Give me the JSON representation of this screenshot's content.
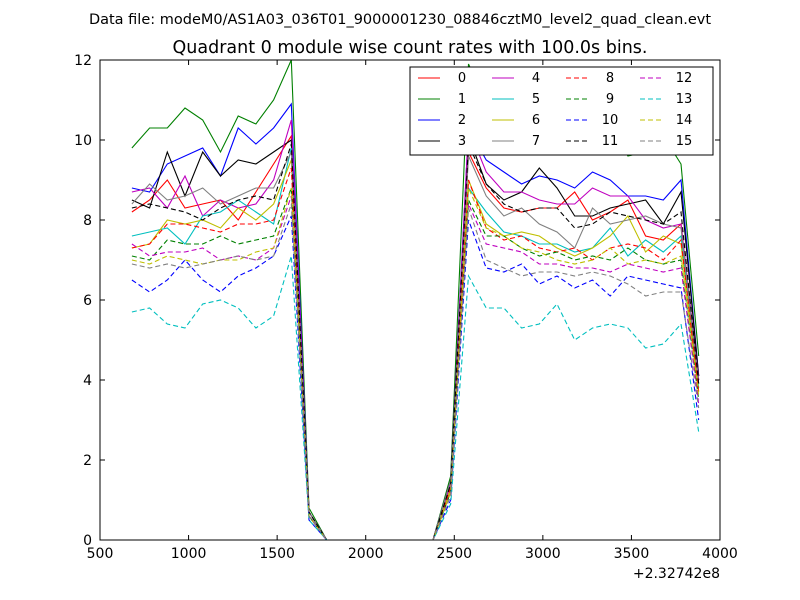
{
  "chart_data": {
    "type": "line",
    "suptitle": "Data file: modeM0/AS1A03_036T01_9000001230_08846cztM0_level2_quad_clean.evt",
    "title": "Quadrant 0 module wise count rates with 100.0s bins.",
    "xlabel": "",
    "ylabel": "",
    "x_offset_label": "+2.32742e8",
    "xlim": [
      500,
      4000
    ],
    "ylim": [
      0,
      12
    ],
    "x_ticks": [
      "500",
      "1000",
      "1500",
      "2000",
      "2500",
      "3000",
      "3500",
      "4000"
    ],
    "y_ticks": [
      "0",
      "2",
      "4",
      "6",
      "8",
      "10",
      "12"
    ],
    "grid": false,
    "legend_position": "top-right",
    "x": [
      680,
      780,
      880,
      980,
      1080,
      1180,
      1280,
      1380,
      1480,
      1580,
      1680,
      1780,
      1880,
      1980,
      2080,
      2180,
      2280,
      2380,
      2480,
      2580,
      2680,
      2780,
      2880,
      2980,
      3080,
      3180,
      3280,
      3380,
      3480,
      3580,
      3680,
      3780,
      3880
    ],
    "series": [
      {
        "name": "0",
        "color": "#ff0000",
        "dash": "solid",
        "values": [
          8.2,
          8.5,
          9.0,
          8.3,
          8.4,
          8.5,
          8.0,
          8.7,
          9.4,
          10.1,
          0.7,
          0.0,
          0.0,
          0.0,
          0.0,
          0.0,
          0.0,
          0.0,
          1.4,
          9.7,
          8.8,
          8.3,
          8.2,
          8.3,
          8.3,
          8.7,
          8.0,
          8.2,
          8.5,
          7.6,
          7.5,
          7.9,
          4.0
        ]
      },
      {
        "name": "1",
        "color": "#008000",
        "dash": "solid",
        "values": [
          9.8,
          10.3,
          10.3,
          10.8,
          10.5,
          9.7,
          10.6,
          10.4,
          11.0,
          12.0,
          0.8,
          0.0,
          0.0,
          0.0,
          0.0,
          0.0,
          0.0,
          0.0,
          1.6,
          11.9,
          10.9,
          10.4,
          10.0,
          9.8,
          9.9,
          9.9,
          10.2,
          10.3,
          9.6,
          9.7,
          10.1,
          9.4,
          4.6
        ]
      },
      {
        "name": "2",
        "color": "#0000ff",
        "dash": "solid",
        "values": [
          8.8,
          8.7,
          9.4,
          9.6,
          9.8,
          9.1,
          10.3,
          9.9,
          10.3,
          10.9,
          0.7,
          0.0,
          0.0,
          0.0,
          0.0,
          0.0,
          0.0,
          0.0,
          1.5,
          10.3,
          9.5,
          9.2,
          8.9,
          9.1,
          9.0,
          8.8,
          9.2,
          9.0,
          8.6,
          8.6,
          8.5,
          9.0,
          4.1
        ]
      },
      {
        "name": "3",
        "color": "#000000",
        "dash": "solid",
        "values": [
          8.5,
          8.3,
          9.7,
          8.6,
          9.7,
          9.1,
          9.5,
          9.4,
          9.7,
          10.0,
          0.7,
          0.0,
          0.0,
          0.0,
          0.0,
          0.0,
          0.0,
          0.0,
          1.5,
          10.1,
          8.9,
          8.5,
          8.7,
          9.3,
          8.8,
          8.1,
          8.1,
          8.3,
          8.4,
          8.5,
          7.9,
          8.7,
          4.1
        ]
      },
      {
        "name": "4",
        "color": "#bf00bf",
        "dash": "solid",
        "values": [
          8.7,
          8.8,
          8.3,
          9.1,
          8.1,
          8.5,
          8.3,
          8.4,
          9.0,
          10.5,
          0.7,
          0.0,
          0.0,
          0.0,
          0.0,
          0.0,
          0.0,
          0.0,
          1.4,
          10.3,
          9.2,
          8.7,
          8.7,
          8.5,
          8.4,
          8.4,
          8.8,
          8.6,
          8.6,
          8.0,
          7.8,
          7.9,
          4.0
        ]
      },
      {
        "name": "5",
        "color": "#00bfbf",
        "dash": "solid",
        "values": [
          7.6,
          7.7,
          7.8,
          7.4,
          8.1,
          8.2,
          8.5,
          8.2,
          7.9,
          9.8,
          0.6,
          0.0,
          0.0,
          0.0,
          0.0,
          0.0,
          0.0,
          0.0,
          1.2,
          8.8,
          8.2,
          7.7,
          7.6,
          7.4,
          7.4,
          7.2,
          7.3,
          7.8,
          7.1,
          7.5,
          7.2,
          7.6,
          3.8
        ]
      },
      {
        "name": "6",
        "color": "#bfbf00",
        "dash": "solid",
        "values": [
          7.3,
          7.4,
          8.0,
          7.9,
          8.0,
          7.8,
          8.3,
          8.0,
          8.4,
          9.5,
          0.6,
          0.0,
          0.0,
          0.0,
          0.0,
          0.0,
          0.0,
          0.0,
          1.3,
          9.0,
          7.9,
          7.6,
          7.7,
          7.6,
          7.3,
          7.1,
          7.3,
          7.6,
          8.1,
          7.2,
          7.6,
          7.4,
          3.7
        ]
      },
      {
        "name": "7",
        "color": "#808080",
        "dash": "solid",
        "values": [
          8.4,
          8.9,
          8.5,
          8.6,
          8.8,
          8.4,
          8.6,
          8.8,
          8.8,
          9.7,
          0.7,
          0.0,
          0.0,
          0.0,
          0.0,
          0.0,
          0.0,
          0.0,
          1.5,
          9.6,
          8.6,
          8.1,
          8.3,
          7.9,
          7.7,
          7.3,
          8.3,
          7.9,
          8.0,
          8.1,
          7.9,
          7.8,
          3.9
        ]
      },
      {
        "name": "8",
        "color": "#ff0000",
        "dash": "dashed",
        "values": [
          7.3,
          7.4,
          7.9,
          7.9,
          7.8,
          7.7,
          7.9,
          7.9,
          8.0,
          9.3,
          0.6,
          0.0,
          0.0,
          0.0,
          0.0,
          0.0,
          0.0,
          0.0,
          1.3,
          9.0,
          7.8,
          7.5,
          7.6,
          7.3,
          7.2,
          7.3,
          7.0,
          7.3,
          7.4,
          7.3,
          7.0,
          7.5,
          3.7
        ]
      },
      {
        "name": "9",
        "color": "#008000",
        "dash": "dashed",
        "values": [
          7.1,
          7.0,
          7.5,
          7.4,
          7.4,
          7.6,
          7.4,
          7.5,
          7.6,
          8.8,
          0.6,
          0.0,
          0.0,
          0.0,
          0.0,
          0.0,
          0.0,
          0.0,
          1.2,
          8.5,
          7.6,
          7.6,
          7.3,
          7.1,
          7.2,
          7.0,
          7.1,
          7.0,
          7.3,
          7.0,
          6.9,
          7.0,
          3.5
        ]
      },
      {
        "name": "10",
        "color": "#0000ff",
        "dash": "dashed",
        "values": [
          6.5,
          6.2,
          6.5,
          7.0,
          6.5,
          6.2,
          6.6,
          6.8,
          7.1,
          8.1,
          0.5,
          0.0,
          0.0,
          0.0,
          0.0,
          0.0,
          0.0,
          0.0,
          1.0,
          8.0,
          6.8,
          6.7,
          6.9,
          6.4,
          6.6,
          6.3,
          6.5,
          6.1,
          6.6,
          6.5,
          6.4,
          6.3,
          3.0
        ]
      },
      {
        "name": "11",
        "color": "#000000",
        "dash": "dashed",
        "values": [
          8.3,
          8.4,
          8.3,
          8.2,
          8.0,
          8.3,
          8.5,
          8.6,
          8.5,
          9.9,
          0.7,
          0.0,
          0.0,
          0.0,
          0.0,
          0.0,
          0.0,
          0.0,
          1.4,
          9.9,
          8.9,
          8.4,
          8.2,
          8.3,
          8.3,
          7.8,
          7.9,
          8.2,
          8.1,
          8.0,
          7.9,
          8.2,
          3.9
        ]
      },
      {
        "name": "12",
        "color": "#bf00bf",
        "dash": "dashed",
        "values": [
          7.4,
          7.1,
          7.2,
          7.2,
          7.3,
          7.0,
          7.1,
          7.0,
          7.3,
          8.6,
          0.6,
          0.0,
          0.0,
          0.0,
          0.0,
          0.0,
          0.0,
          0.0,
          1.2,
          8.4,
          7.4,
          7.3,
          7.2,
          6.9,
          6.9,
          6.8,
          6.8,
          6.7,
          6.9,
          6.8,
          6.7,
          6.8,
          3.4
        ]
      },
      {
        "name": "13",
        "color": "#00bfbf",
        "dash": "dashed",
        "values": [
          5.7,
          5.8,
          5.4,
          5.3,
          5.9,
          6.0,
          5.8,
          5.3,
          5.6,
          7.1,
          0.5,
          0.0,
          0.0,
          0.0,
          0.0,
          0.0,
          0.0,
          0.0,
          0.9,
          6.6,
          5.8,
          5.8,
          5.3,
          5.4,
          5.9,
          5.0,
          5.3,
          5.4,
          5.3,
          4.8,
          4.9,
          5.4,
          2.7
        ]
      },
      {
        "name": "14",
        "color": "#bfbf00",
        "dash": "dashed",
        "values": [
          7.0,
          6.9,
          7.1,
          7.0,
          6.9,
          7.0,
          7.0,
          7.2,
          7.3,
          8.8,
          0.6,
          0.0,
          0.0,
          0.0,
          0.0,
          0.0,
          0.0,
          0.0,
          1.2,
          8.8,
          7.8,
          7.6,
          7.3,
          7.2,
          7.0,
          6.9,
          7.0,
          7.3,
          6.9,
          7.0,
          6.9,
          7.1,
          3.6
        ]
      },
      {
        "name": "15",
        "color": "#808080",
        "dash": "dashed",
        "values": [
          6.9,
          6.8,
          6.9,
          6.8,
          6.9,
          7.0,
          7.1,
          7.0,
          7.1,
          8.4,
          0.6,
          0.0,
          0.0,
          0.0,
          0.0,
          0.0,
          0.0,
          0.0,
          1.1,
          8.3,
          7.0,
          6.8,
          6.6,
          6.7,
          6.7,
          6.6,
          6.7,
          6.6,
          6.4,
          6.1,
          6.2,
          6.2,
          3.3
        ]
      }
    ]
  }
}
